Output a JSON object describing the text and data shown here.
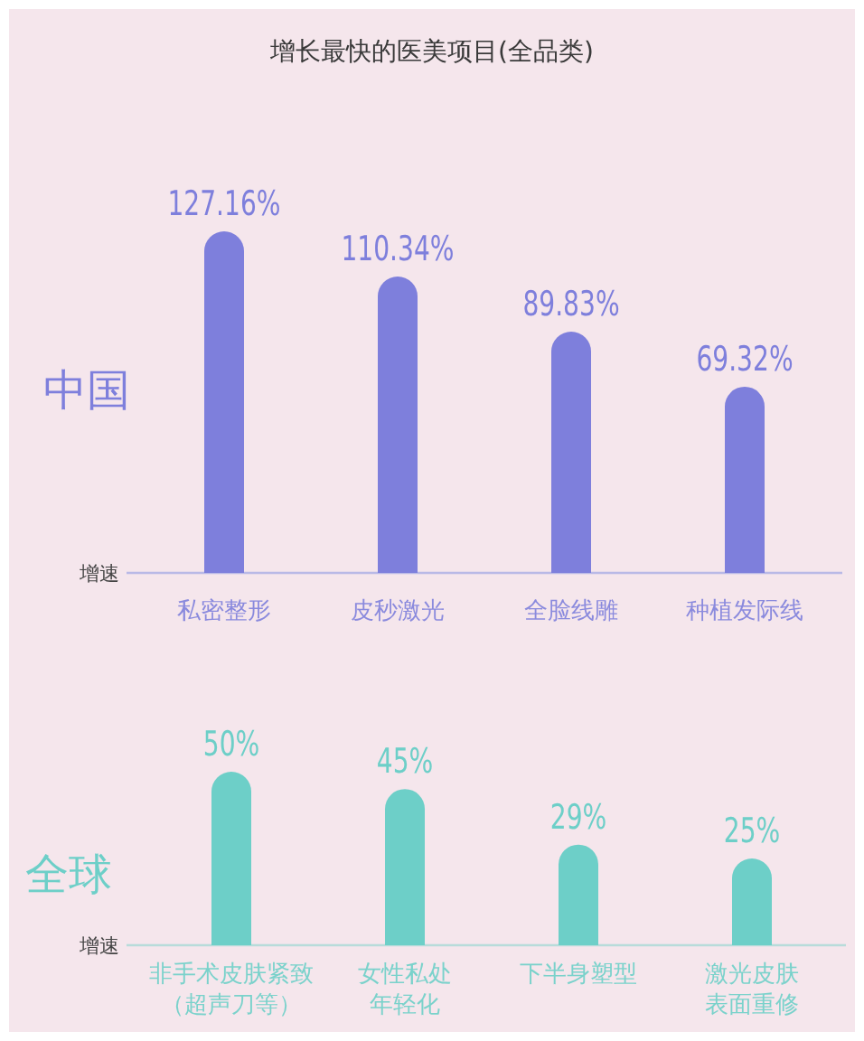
{
  "chart_data": [
    {
      "type": "bar",
      "title": "增长最快的医美项目(全品类)",
      "ylabel": "增速",
      "categories": [
        "私密整形",
        "皮秒激光",
        "全脸线雕",
        "种植发际线"
      ],
      "tick_labels": "x",
      "series": [
        {
          "name": "中国",
          "color": "#7e7fdc",
          "values": [
            127.16,
            110.34,
            89.83,
            69.32
          ],
          "value_labels": [
            "127.16%",
            "110.34%",
            "89.83%",
            "69.32%"
          ]
        }
      ]
    },
    {
      "type": "bar",
      "ylabel": "增速",
      "categories": [
        "非手术皮肤紧致（超声刀等）",
        "女性私处年轻化",
        "下半身塑型",
        "激光皮肤表面重修"
      ],
      "tick_labels": "x",
      "series": [
        {
          "name": "全球",
          "color": "#6dcfc8",
          "values": [
            50,
            45,
            29,
            25
          ],
          "value_labels": [
            "50%",
            "45%",
            "29%",
            "25%"
          ]
        }
      ]
    }
  ]
}
